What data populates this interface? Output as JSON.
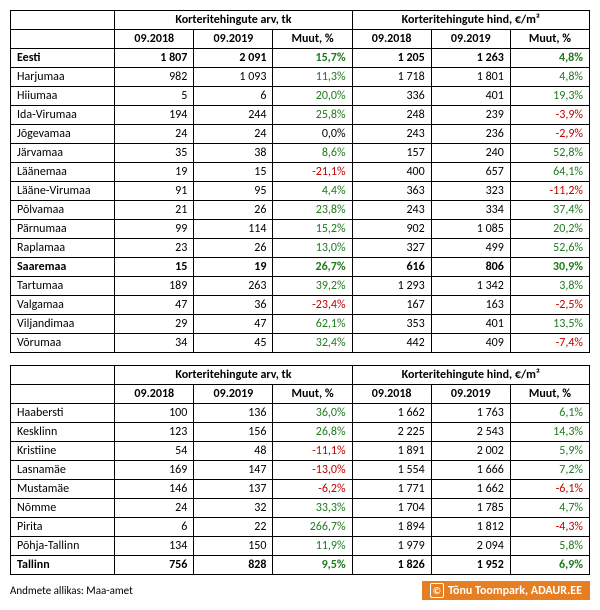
{
  "table1": {
    "group_headers": [
      "Korteritehingute arv, tk",
      "Korteritehingute hind, €/m²"
    ],
    "sub_headers": [
      "09.2018",
      "09.2019",
      "Muut, %",
      "09.2018",
      "09.2019",
      "Muut, %"
    ],
    "rows": [
      {
        "label": "Eesti",
        "bold": true,
        "v": [
          "1 807",
          "2 091",
          "15,7%",
          "1 205",
          "1 263",
          "4,8%"
        ],
        "c": [
          "",
          "",
          "pos",
          "",
          "",
          "pos"
        ]
      },
      {
        "label": "Harjumaa",
        "v": [
          "982",
          "1 093",
          "11,3%",
          "1 718",
          "1 801",
          "4,8%"
        ],
        "c": [
          "",
          "",
          "pos",
          "",
          "",
          "pos"
        ]
      },
      {
        "label": "Hiiumaa",
        "v": [
          "5",
          "6",
          "20,0%",
          "336",
          "401",
          "19,3%"
        ],
        "c": [
          "",
          "",
          "pos",
          "",
          "",
          "pos"
        ]
      },
      {
        "label": "Ida-Virumaa",
        "v": [
          "194",
          "244",
          "25,8%",
          "248",
          "239",
          "-3,9%"
        ],
        "c": [
          "",
          "",
          "pos",
          "",
          "",
          "neg"
        ]
      },
      {
        "label": "Jõgevamaa",
        "v": [
          "24",
          "24",
          "0,0%",
          "243",
          "236",
          "-2,9%"
        ],
        "c": [
          "",
          "",
          "zero",
          "",
          "",
          "neg"
        ]
      },
      {
        "label": "Järvamaa",
        "v": [
          "35",
          "38",
          "8,6%",
          "157",
          "240",
          "52,8%"
        ],
        "c": [
          "",
          "",
          "pos",
          "",
          "",
          "pos"
        ]
      },
      {
        "label": "Läänemaa",
        "v": [
          "19",
          "15",
          "-21,1%",
          "400",
          "657",
          "64,1%"
        ],
        "c": [
          "",
          "",
          "neg",
          "",
          "",
          "pos"
        ]
      },
      {
        "label": "Lääne-Virumaa",
        "v": [
          "91",
          "95",
          "4,4%",
          "363",
          "323",
          "-11,2%"
        ],
        "c": [
          "",
          "",
          "pos",
          "",
          "",
          "neg"
        ]
      },
      {
        "label": "Põlvamaa",
        "v": [
          "21",
          "26",
          "23,8%",
          "243",
          "334",
          "37,4%"
        ],
        "c": [
          "",
          "",
          "pos",
          "",
          "",
          "pos"
        ]
      },
      {
        "label": "Pärnumaa",
        "v": [
          "99",
          "114",
          "15,2%",
          "902",
          "1 085",
          "20,2%"
        ],
        "c": [
          "",
          "",
          "pos",
          "",
          "",
          "pos"
        ]
      },
      {
        "label": "Raplamaa",
        "v": [
          "23",
          "26",
          "13,0%",
          "327",
          "499",
          "52,6%"
        ],
        "c": [
          "",
          "",
          "pos",
          "",
          "",
          "pos"
        ]
      },
      {
        "label": "Saaremaa",
        "bold": true,
        "v": [
          "15",
          "19",
          "26,7%",
          "616",
          "806",
          "30,9%"
        ],
        "c": [
          "",
          "",
          "pos",
          "",
          "",
          "pos"
        ]
      },
      {
        "label": "Tartumaa",
        "v": [
          "189",
          "263",
          "39,2%",
          "1 293",
          "1 342",
          "3,8%"
        ],
        "c": [
          "",
          "",
          "pos",
          "",
          "",
          "pos"
        ]
      },
      {
        "label": "Valgamaa",
        "v": [
          "47",
          "36",
          "-23,4%",
          "167",
          "163",
          "-2,5%"
        ],
        "c": [
          "",
          "",
          "neg",
          "",
          "",
          "neg"
        ]
      },
      {
        "label": "Viljandimaa",
        "v": [
          "29",
          "47",
          "62,1%",
          "353",
          "401",
          "13,5%"
        ],
        "c": [
          "",
          "",
          "pos",
          "",
          "",
          "pos"
        ]
      },
      {
        "label": "Võrumaa",
        "v": [
          "34",
          "45",
          "32,4%",
          "442",
          "409",
          "-7,4%"
        ],
        "c": [
          "",
          "",
          "pos",
          "",
          "",
          "neg"
        ]
      }
    ]
  },
  "table2": {
    "group_headers": [
      "Korteritehingute arv, tk",
      "Korteritehingute hind, €/m²"
    ],
    "sub_headers": [
      "09.2018",
      "09.2019",
      "Muut, %",
      "09.2018",
      "09.2019",
      "Muut, %"
    ],
    "rows": [
      {
        "label": "Haabersti",
        "v": [
          "100",
          "136",
          "36,0%",
          "1 662",
          "1 763",
          "6,1%"
        ],
        "c": [
          "",
          "",
          "pos",
          "",
          "",
          "pos"
        ]
      },
      {
        "label": "Kesklinn",
        "v": [
          "123",
          "156",
          "26,8%",
          "2 225",
          "2 543",
          "14,3%"
        ],
        "c": [
          "",
          "",
          "pos",
          "",
          "",
          "pos"
        ]
      },
      {
        "label": "Kristiine",
        "v": [
          "54",
          "48",
          "-11,1%",
          "1 891",
          "2 002",
          "5,9%"
        ],
        "c": [
          "",
          "",
          "neg",
          "",
          "",
          "pos"
        ]
      },
      {
        "label": "Lasnamäe",
        "v": [
          "169",
          "147",
          "-13,0%",
          "1 554",
          "1 666",
          "7,2%"
        ],
        "c": [
          "",
          "",
          "neg",
          "",
          "",
          "pos"
        ]
      },
      {
        "label": "Mustamäe",
        "v": [
          "146",
          "137",
          "-6,2%",
          "1 771",
          "1 662",
          "-6,1%"
        ],
        "c": [
          "",
          "",
          "neg",
          "",
          "",
          "neg"
        ]
      },
      {
        "label": "Nõmme",
        "v": [
          "24",
          "32",
          "33,3%",
          "1 704",
          "1 785",
          "4,7%"
        ],
        "c": [
          "",
          "",
          "pos",
          "",
          "",
          "pos"
        ]
      },
      {
        "label": "Pirita",
        "v": [
          "6",
          "22",
          "266,7%",
          "1 894",
          "1 812",
          "-4,3%"
        ],
        "c": [
          "",
          "",
          "pos",
          "",
          "",
          "neg"
        ]
      },
      {
        "label": "Põhja-Tallinn",
        "v": [
          "134",
          "150",
          "11,9%",
          "1 979",
          "2 094",
          "5,8%"
        ],
        "c": [
          "",
          "",
          "pos",
          "",
          "",
          "pos"
        ]
      },
      {
        "label": "Tallinn",
        "bold": true,
        "v": [
          "756",
          "828",
          "9,5%",
          "1 826",
          "1 952",
          "6,9%"
        ],
        "c": [
          "",
          "",
          "pos",
          "",
          "",
          "pos"
        ]
      }
    ]
  },
  "footer": {
    "source": "Andmete allikas: Maa-amet",
    "attrib": "Tõnu Toompark, ADAUR.EE"
  },
  "style": {
    "pos_color": "#1f7a1f",
    "neg_color": "#c00000",
    "attrib_bg": "#e67e22",
    "border_color": "#000000",
    "font_family": "Calibri, Arial, sans-serif",
    "body_font_size": 12
  }
}
